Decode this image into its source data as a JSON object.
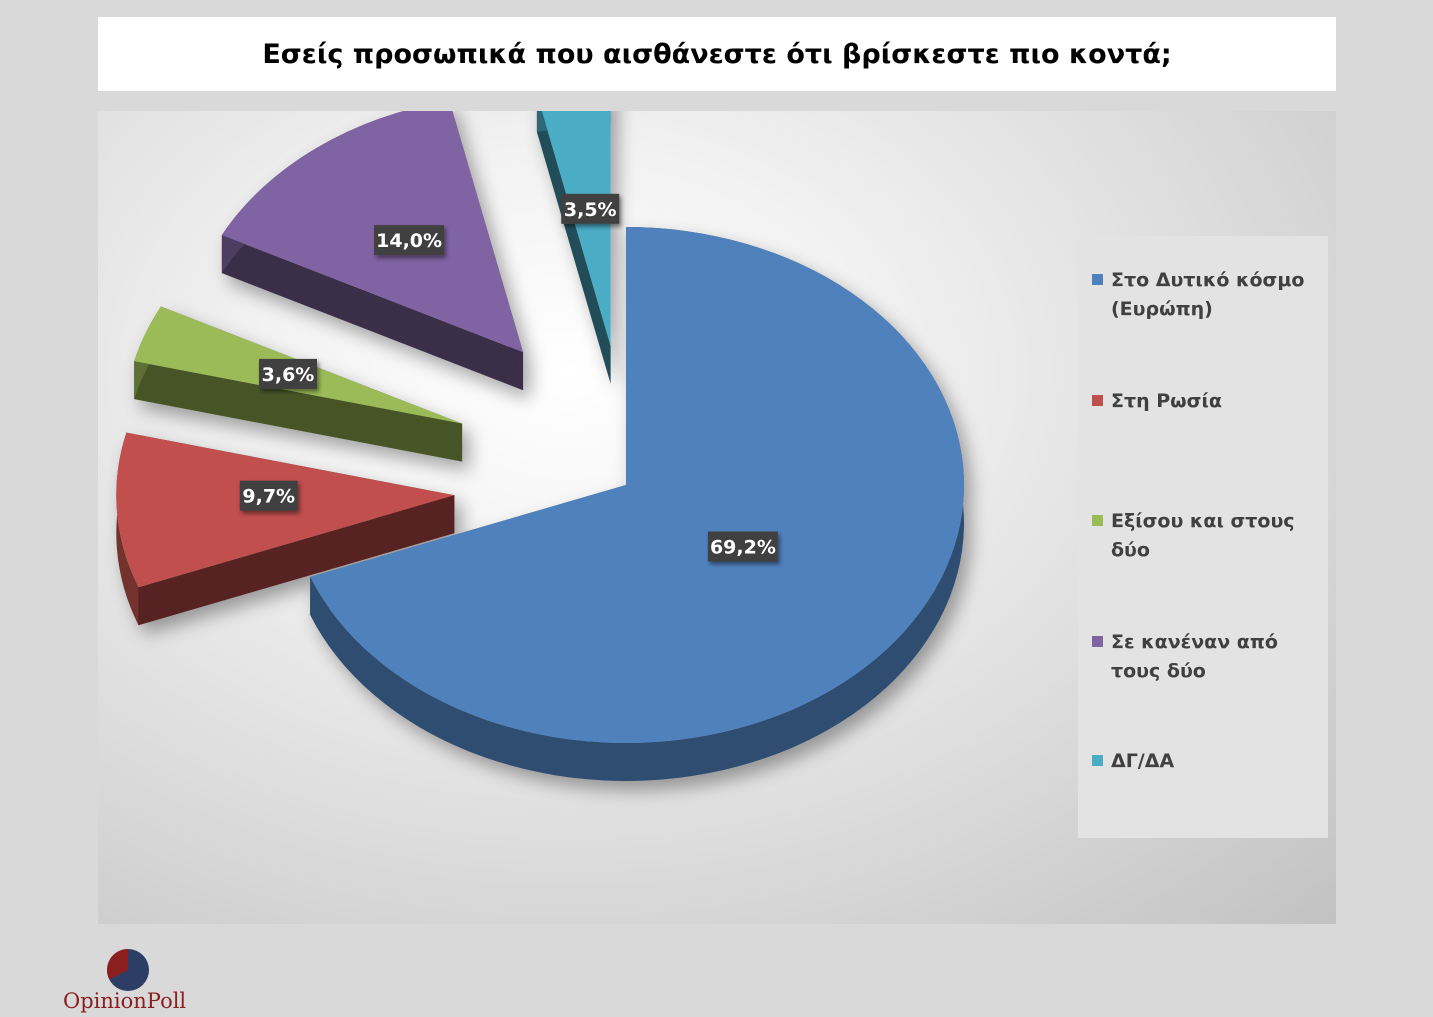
{
  "title": "Εσείς προσωπικά που αισθάνεστε ότι βρίσκεστε πιο κοντά;",
  "chart_data": {
    "type": "pie",
    "title": "Εσείς προσωπικά που αισθάνεστε ότι βρίσκεστε πιο κοντά;",
    "style": "3d-exploded",
    "legend_position": "right",
    "slices": [
      {
        "label": "Στο Δυτικό κόσμο (Ευρώπη)",
        "value": 69.2,
        "display": "69,2%",
        "color": "#4f81bd"
      },
      {
        "label": "Στη Ρωσία",
        "value": 9.7,
        "display": "9,7%",
        "color": "#c0504d"
      },
      {
        "label": "Εξίσου και στους δύο",
        "value": 3.6,
        "display": "3,6%",
        "color": "#9bbb59"
      },
      {
        "label": "Σε κανέναν από τους δύο",
        "value": 14.0,
        "display": "14,0%",
        "color": "#8064a2"
      },
      {
        "label": "ΔΓ/ΔΑ",
        "value": 3.5,
        "display": "3,5%",
        "color": "#4bacc6"
      }
    ]
  },
  "logo": {
    "text": "OpinionPoll",
    "colors": [
      "#8b1f1f",
      "#2c3e66"
    ]
  }
}
